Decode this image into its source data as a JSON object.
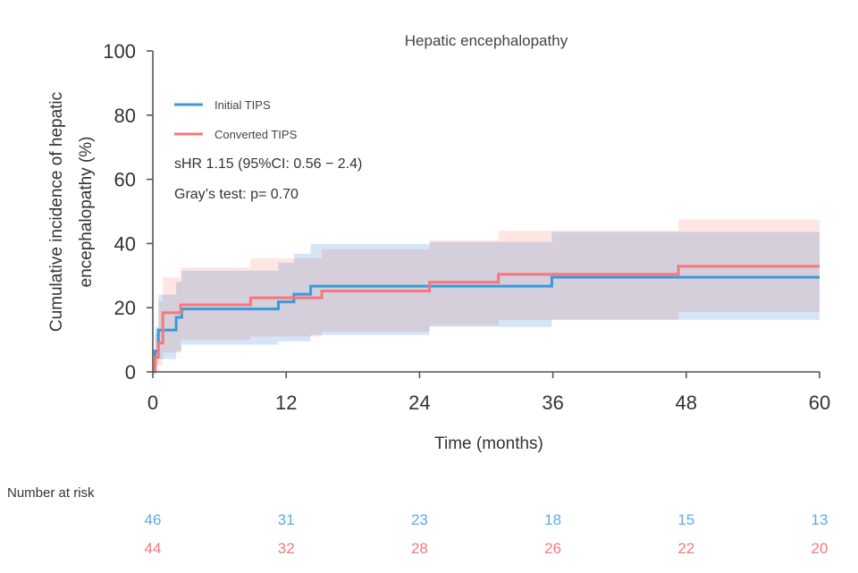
{
  "chart_data": {
    "type": "line",
    "subtype": "step-cumulative-incidence",
    "title": "Hepatic encephalopathy",
    "xlabel": "Time (months)",
    "ylabel_lines": [
      "Cumulative incidence of hepatic",
      "encephalopathy (%)"
    ],
    "xlim": [
      0,
      60
    ],
    "ylim": [
      0,
      100
    ],
    "xticks": [
      0,
      12,
      24,
      36,
      48,
      60
    ],
    "yticks": [
      0,
      20,
      40,
      60,
      80,
      100
    ],
    "xtick_labels": [
      "0",
      "12",
      "24",
      "36",
      "48",
      "60"
    ],
    "ytick_labels": [
      "0",
      "20",
      "40",
      "60",
      "80",
      "100"
    ],
    "grid": false,
    "legend_position": "top-left",
    "series": [
      {
        "name": "Initial TIPS",
        "color": "#3a9ad9",
        "ci_color": "#c7dcf5",
        "steps": [
          [
            0,
            0
          ],
          [
            0.2,
            6.5
          ],
          [
            0.5,
            13.0
          ],
          [
            2.1,
            17.0
          ],
          [
            2.6,
            19.6
          ],
          [
            11.3,
            21.8
          ],
          [
            12.7,
            24.2
          ],
          [
            14.2,
            26.7
          ],
          [
            35.9,
            29.5
          ],
          [
            60,
            29.5
          ]
        ],
        "ci_upper": [
          [
            0,
            0
          ],
          [
            0.2,
            14
          ],
          [
            0.5,
            24
          ],
          [
            2.1,
            28
          ],
          [
            2.6,
            31.5
          ],
          [
            11.3,
            34
          ],
          [
            12.7,
            36.8
          ],
          [
            14.2,
            39.8
          ],
          [
            24.9,
            40.5
          ],
          [
            35.9,
            43.6
          ],
          [
            60,
            43.6
          ]
        ],
        "ci_lower": [
          [
            0,
            0
          ],
          [
            0.2,
            2
          ],
          [
            0.5,
            4
          ],
          [
            2.1,
            6.5
          ],
          [
            2.6,
            8.5
          ],
          [
            11.3,
            9.5
          ],
          [
            14.2,
            11.5
          ],
          [
            24.9,
            14
          ],
          [
            35.9,
            16.2
          ],
          [
            60,
            16.2
          ]
        ]
      },
      {
        "name": "Converted TIPS",
        "color": "#f4787b",
        "ci_color": "#ffd5cf",
        "steps": [
          [
            0,
            0
          ],
          [
            0.2,
            4.5
          ],
          [
            0.5,
            9.0
          ],
          [
            0.9,
            18.4
          ],
          [
            2.5,
            20.9
          ],
          [
            8.8,
            23.1
          ],
          [
            15.2,
            25.2
          ],
          [
            24.9,
            27.9
          ],
          [
            31.1,
            30.4
          ],
          [
            47.3,
            32.9
          ],
          [
            60,
            32.9
          ]
        ],
        "ci_upper": [
          [
            0,
            0
          ],
          [
            0.2,
            12
          ],
          [
            0.5,
            22
          ],
          [
            0.9,
            29.5
          ],
          [
            2.5,
            32.5
          ],
          [
            8.8,
            35.4
          ],
          [
            12.7,
            35.4
          ],
          [
            15.2,
            38.2
          ],
          [
            24.9,
            41.0
          ],
          [
            31.1,
            44.0
          ],
          [
            47.3,
            47.4
          ],
          [
            60,
            47.4
          ]
        ],
        "ci_lower": [
          [
            0,
            0
          ],
          [
            0.5,
            2
          ],
          [
            0.9,
            6
          ],
          [
            2.5,
            10
          ],
          [
            8.8,
            11
          ],
          [
            12.7,
            11
          ],
          [
            15.2,
            12.5
          ],
          [
            24.9,
            14.5
          ],
          [
            31.1,
            16.2
          ],
          [
            47.3,
            18.7
          ],
          [
            60,
            18.7
          ]
        ]
      }
    ],
    "annotations": [
      "sHR 1.15 (95%CI: 0.56 − 2.4)",
      "Gray’s test: p= 0.70"
    ],
    "risk_table": {
      "title": "Number at risk",
      "times": [
        0,
        12,
        24,
        36,
        48,
        60
      ],
      "rows": [
        {
          "name": "Initial TIPS",
          "color": "#5aade6",
          "values": [
            46,
            31,
            23,
            18,
            15,
            13
          ]
        },
        {
          "name": "Converted TIPS",
          "color": "#f4787b",
          "values": [
            44,
            32,
            28,
            26,
            22,
            20
          ]
        }
      ]
    }
  }
}
